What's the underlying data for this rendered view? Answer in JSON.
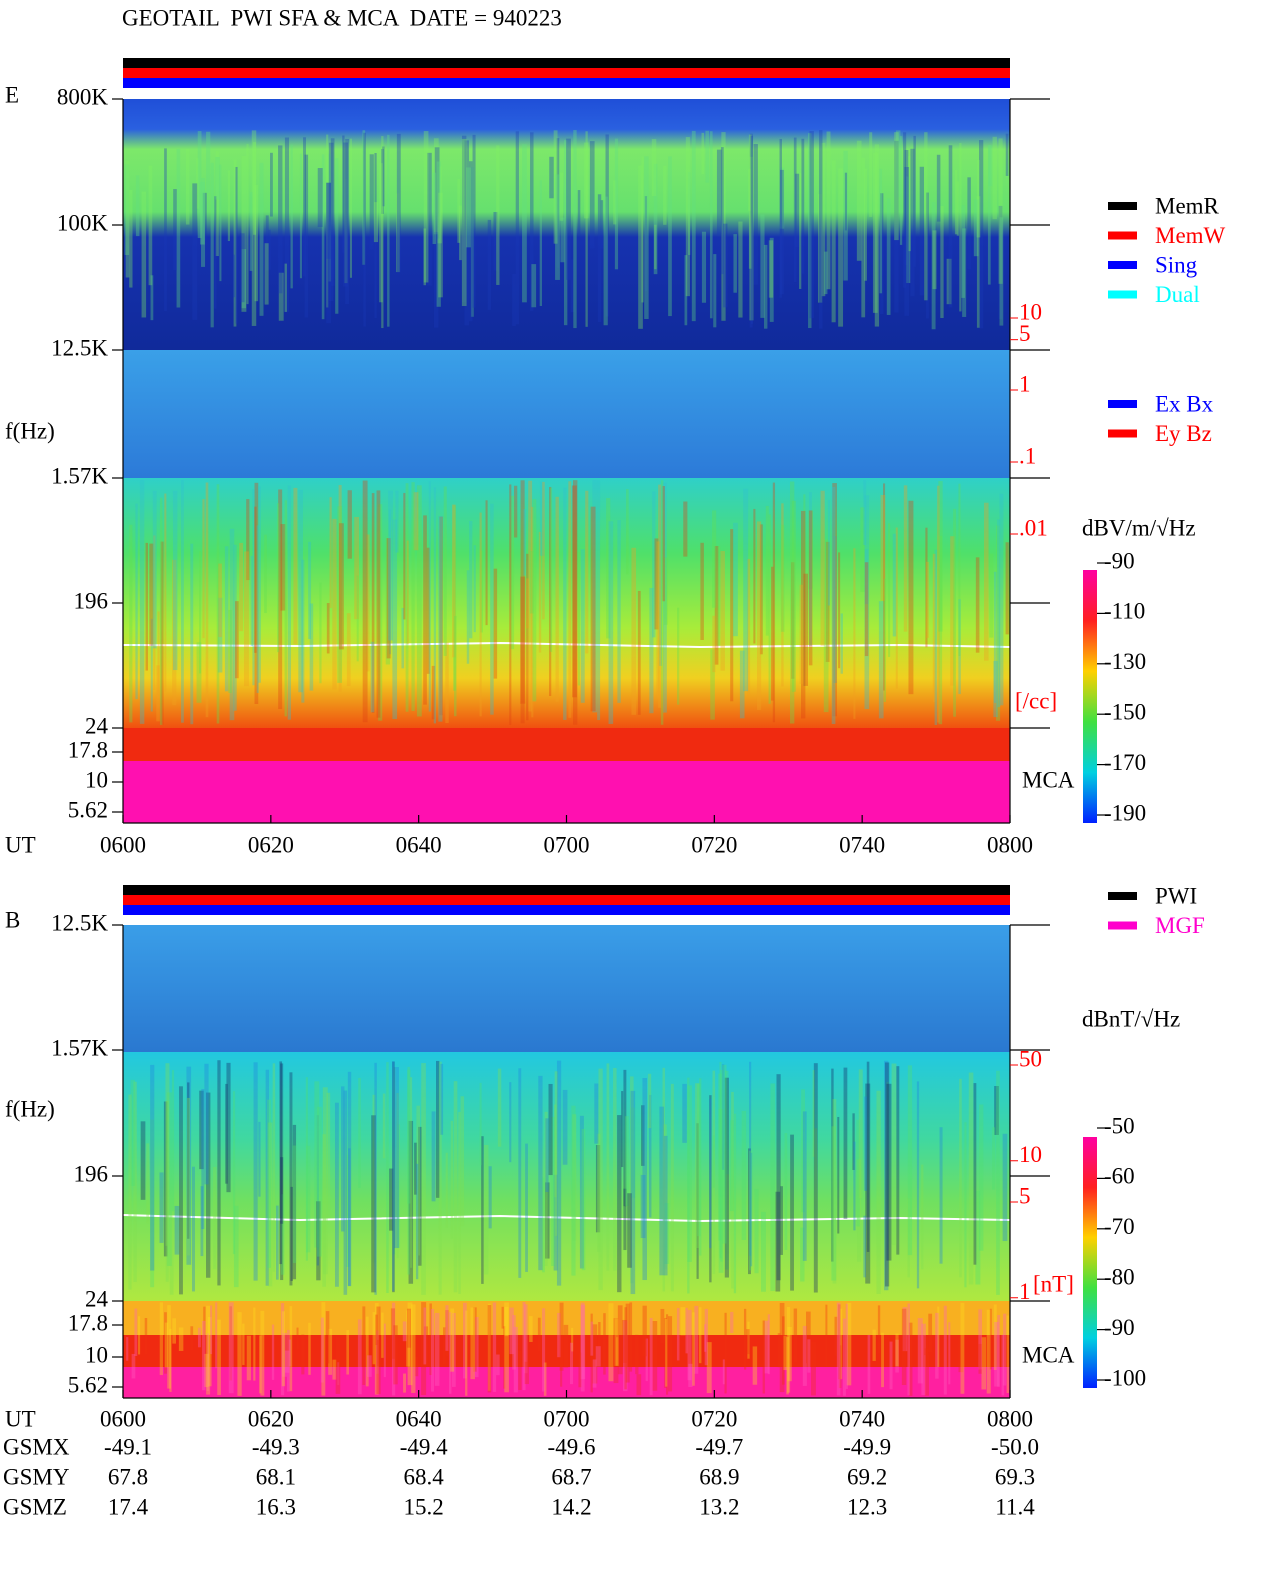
{
  "header": {
    "title": "GEOTAIL  PWI SFA & MCA  DATE = 940223"
  },
  "time_axis": {
    "label": "UT",
    "ticks": [
      "0600",
      "0620",
      "0640",
      "0700",
      "0720",
      "0740",
      "0800"
    ]
  },
  "panel_e": {
    "label": "E",
    "freq_label": "f(Hz)",
    "freq_ticks": [
      "800K",
      "100K",
      "12.5K",
      "1.57K",
      "196",
      "24",
      "17.8",
      "10",
      "5.62"
    ],
    "mca": "MCA",
    "density_ticks": [
      10,
      5,
      1,
      {
        "value": 0.1,
        "label": ".1"
      },
      {
        "value": 0.01,
        "label": ".01"
      }
    ],
    "density_unit": "[/cc]",
    "status_legend": [
      {
        "name": "MemR",
        "color": "#000000"
      },
      {
        "name": "MemW",
        "color": "#ff0000"
      },
      {
        "name": "Sing",
        "color": "#0000ff"
      },
      {
        "name": "Dual",
        "color": "#00ffff"
      }
    ],
    "antenna_legend": [
      {
        "name": "Ex Bx",
        "color": "#0000ff"
      },
      {
        "name": "Ey Bz",
        "color": "#ff0000"
      }
    ],
    "colorbar": {
      "unit": "dBV/m/√Hz",
      "ticks": [
        -90,
        -110,
        -130,
        -150,
        -170,
        -190
      ]
    }
  },
  "panel_b": {
    "label": "B",
    "freq_label": "f(Hz)",
    "freq_ticks": [
      "12.5K",
      "1.57K",
      "196",
      "24",
      "17.8",
      "10",
      "5.62"
    ],
    "mca": "MCA",
    "field_ticks": [
      50,
      10,
      5,
      1
    ],
    "field_unit": "[nT]",
    "legend": [
      {
        "name": "PWI",
        "color": "#000000"
      },
      {
        "name": "MGF",
        "color": "#ff00cc"
      }
    ],
    "colorbar": {
      "unit": "dBnT/√Hz",
      "ticks": [
        -50,
        -60,
        -70,
        -80,
        -90,
        -100
      ]
    }
  },
  "orbit": {
    "rows": [
      {
        "label": "GSMX",
        "values": [
          "-49.1",
          "-49.3",
          "-49.4",
          "-49.6",
          "-49.7",
          "-49.9",
          "-50.0"
        ]
      },
      {
        "label": "GSMY",
        "values": [
          "67.8",
          "68.1",
          "68.4",
          "68.7",
          "68.9",
          "69.2",
          "69.3"
        ]
      },
      {
        "label": "GSMZ",
        "values": [
          "17.4",
          "16.3",
          "15.2",
          "14.2",
          "13.2",
          "12.3",
          "11.4"
        ]
      }
    ]
  }
}
